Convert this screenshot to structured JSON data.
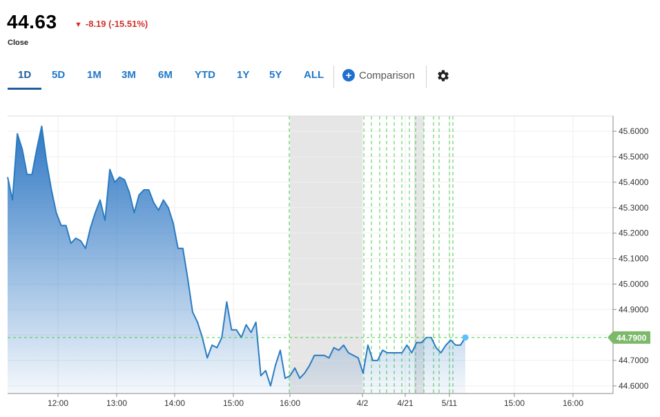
{
  "quote": {
    "price": "44.63",
    "change": "-8.19 (-15.51%)",
    "change_color": "#d0312d",
    "close_label": "Close"
  },
  "ranges": {
    "active": "1D",
    "items": [
      "1D",
      "5D",
      "1M",
      "3M",
      "6M",
      "YTD",
      "1Y",
      "5Y",
      "ALL"
    ]
  },
  "toolbar": {
    "comparison_label": "Comparison",
    "comparison_icon": "plus-circle-icon",
    "settings_icon": "gear-icon"
  },
  "colors": {
    "line": "#2a7bc0",
    "fill_top": "#3b82cc",
    "last_price_badge": "#7db96a",
    "guide_lines": "#44cc44",
    "shaded_region": "#e6e6e6"
  },
  "chart_data": {
    "type": "area",
    "y_ticks": [
      "45.6000",
      "45.5000",
      "45.4000",
      "45.3000",
      "45.2000",
      "45.1000",
      "45.0000",
      "44.9000",
      "44.8000",
      "44.7000",
      "44.6000"
    ],
    "ylim": [
      44.57,
      45.66
    ],
    "x_ticks": [
      "12:00",
      "13:00",
      "14:00",
      "15:00",
      "16:00",
      "4/2",
      "4/21",
      "5/11",
      "15:00",
      "16:00"
    ],
    "last_price_label": "44.7900",
    "last_price": 44.79,
    "series": [
      {
        "values": [
          45.42,
          45.33,
          45.59,
          45.53,
          45.43,
          45.43,
          45.53,
          45.62,
          45.48,
          45.37,
          45.28,
          45.23,
          45.23,
          45.16,
          45.18,
          45.17,
          45.14,
          45.22,
          45.28,
          45.33,
          45.25,
          45.45,
          45.4,
          45.42,
          45.41,
          45.36,
          45.28,
          45.35,
          45.37,
          45.37,
          45.32,
          45.29,
          45.33,
          45.3,
          45.24,
          45.14,
          45.14,
          45.02,
          44.89,
          44.85,
          44.79,
          44.71,
          44.76,
          44.75,
          44.79,
          44.93,
          44.82,
          44.82,
          44.79,
          44.84,
          44.81,
          44.85,
          44.64,
          44.66,
          44.6,
          44.68,
          44.74,
          44.63,
          44.64,
          44.67,
          44.63,
          44.65,
          44.68,
          44.72,
          44.72,
          44.72,
          44.71,
          44.75,
          44.74,
          44.76,
          44.73,
          44.72,
          44.71,
          44.65,
          44.76,
          44.7,
          44.7,
          44.74,
          44.73,
          44.73,
          44.73,
          44.73,
          44.76,
          44.73,
          44.77,
          44.77,
          44.79,
          44.79,
          44.75,
          44.73,
          44.76,
          44.78,
          44.76,
          44.76,
          44.79
        ]
      }
    ]
  }
}
